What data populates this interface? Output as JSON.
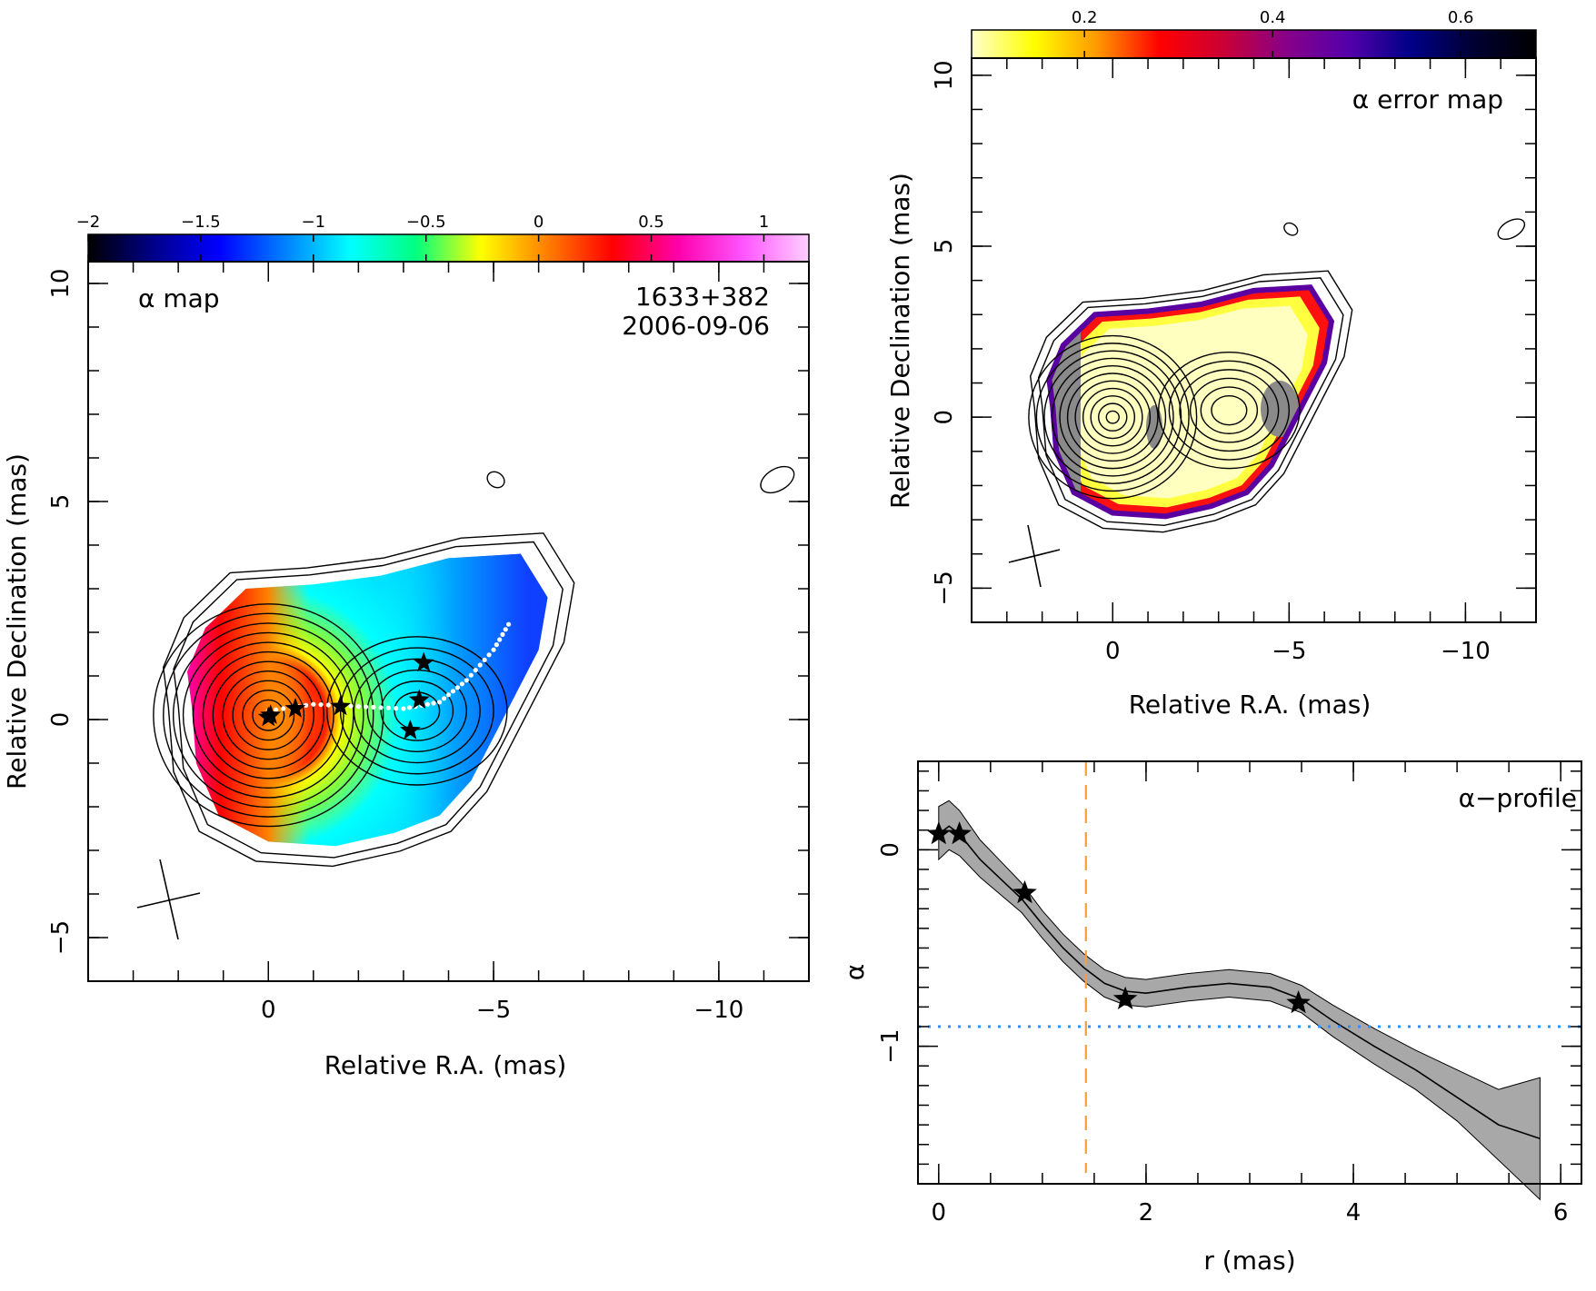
{
  "chart_data": [
    {
      "type": "heatmap",
      "title": "α map",
      "source_label": "1633+382",
      "date_label": "2006-09-06",
      "xlabel": "Relative R.A. (mas)",
      "ylabel": "Relative Declination (mas)",
      "xlim": [
        4,
        -12
      ],
      "ylim": [
        -6,
        10.5
      ],
      "x_ticks": [
        "0",
        "−5",
        "−10"
      ],
      "y_ticks": [
        "−5",
        "0",
        "5",
        "10"
      ],
      "colorbar": {
        "range": [
          -2,
          1.2
        ],
        "ticks": [
          "−2",
          "−1.5",
          "−1",
          "−0.5",
          "0",
          "0.5",
          "1"
        ],
        "colors": [
          "#000000",
          "#00008b",
          "#0000ff",
          "#0080ff",
          "#00ffff",
          "#00ff80",
          "#ffff00",
          "#ff8000",
          "#ff0000",
          "#ff00aa",
          "#ff55ff",
          "#ffd0ff"
        ]
      },
      "stars": [
        [
          0.0,
          0.05
        ],
        [
          -0.05,
          0.1
        ],
        [
          -0.6,
          0.25
        ],
        [
          -1.6,
          0.3
        ],
        [
          -3.45,
          1.3
        ],
        [
          -3.35,
          0.45
        ],
        [
          -3.15,
          -0.25
        ]
      ],
      "ridge_line": [
        [
          0,
          0.2
        ],
        [
          -1,
          0.35
        ],
        [
          -2,
          0.3
        ],
        [
          -3,
          0.25
        ],
        [
          -3.8,
          0.4
        ],
        [
          -4.4,
          0.9
        ],
        [
          -5,
          1.6
        ],
        [
          -5.4,
          2.3
        ]
      ]
    },
    {
      "type": "heatmap",
      "title": "α error map",
      "xlabel": "Relative R.A. (mas)",
      "ylabel": "Relative Declination (mas)",
      "xlim": [
        4,
        -12
      ],
      "ylim": [
        -6,
        10.5
      ],
      "x_ticks": [
        "0",
        "−5",
        "−10"
      ],
      "y_ticks": [
        "−5",
        "0",
        "5",
        "10"
      ],
      "colorbar": {
        "range": [
          0.08,
          0.68
        ],
        "ticks": [
          "0.2",
          "0.4",
          "0.6"
        ],
        "colors": [
          "#ffffcc",
          "#ffff00",
          "#ff9900",
          "#ff0000",
          "#cc0033",
          "#880088",
          "#5500aa",
          "#000088",
          "#000033",
          "#000000"
        ]
      }
    },
    {
      "type": "line",
      "title": "α−profile",
      "xlabel": "r (mas)",
      "ylabel": "α",
      "xlim": [
        -0.2,
        6.2
      ],
      "ylim": [
        -1.7,
        0.45
      ],
      "x_ticks": [
        "0",
        "2",
        "4",
        "6"
      ],
      "y_ticks": [
        "−1",
        "0"
      ],
      "x": [
        0.0,
        0.1,
        0.2,
        0.4,
        0.6,
        0.8,
        1.0,
        1.2,
        1.4,
        1.6,
        1.8,
        2.0,
        2.4,
        2.8,
        3.2,
        3.5,
        3.8,
        4.2,
        4.6,
        5.0,
        5.4,
        5.8
      ],
      "alpha": [
        0.08,
        0.12,
        0.08,
        -0.05,
        -0.15,
        -0.25,
        -0.38,
        -0.5,
        -0.6,
        -0.68,
        -0.72,
        -0.73,
        -0.7,
        -0.68,
        -0.7,
        -0.76,
        -0.87,
        -1.0,
        -1.12,
        -1.26,
        -1.4,
        -1.47
      ],
      "error_lower": [
        -0.05,
        0.0,
        -0.03,
        -0.14,
        -0.23,
        -0.32,
        -0.45,
        -0.57,
        -0.67,
        -0.75,
        -0.79,
        -0.8,
        -0.77,
        -0.75,
        -0.77,
        -0.83,
        -0.95,
        -1.09,
        -1.22,
        -1.38,
        -1.58,
        -1.78
      ],
      "error_upper": [
        0.22,
        0.25,
        0.2,
        0.05,
        -0.06,
        -0.17,
        -0.31,
        -0.43,
        -0.53,
        -0.61,
        -0.65,
        -0.66,
        -0.63,
        -0.61,
        -0.63,
        -0.69,
        -0.79,
        -0.91,
        -1.02,
        -1.12,
        -1.22,
        -1.16
      ],
      "stars": [
        [
          0.0,
          0.08
        ],
        [
          0.2,
          0.08
        ],
        [
          0.83,
          -0.22
        ],
        [
          1.8,
          -0.76
        ],
        [
          3.47,
          -0.78
        ]
      ],
      "vline_x": 1.42,
      "hline_y": -0.9
    }
  ]
}
